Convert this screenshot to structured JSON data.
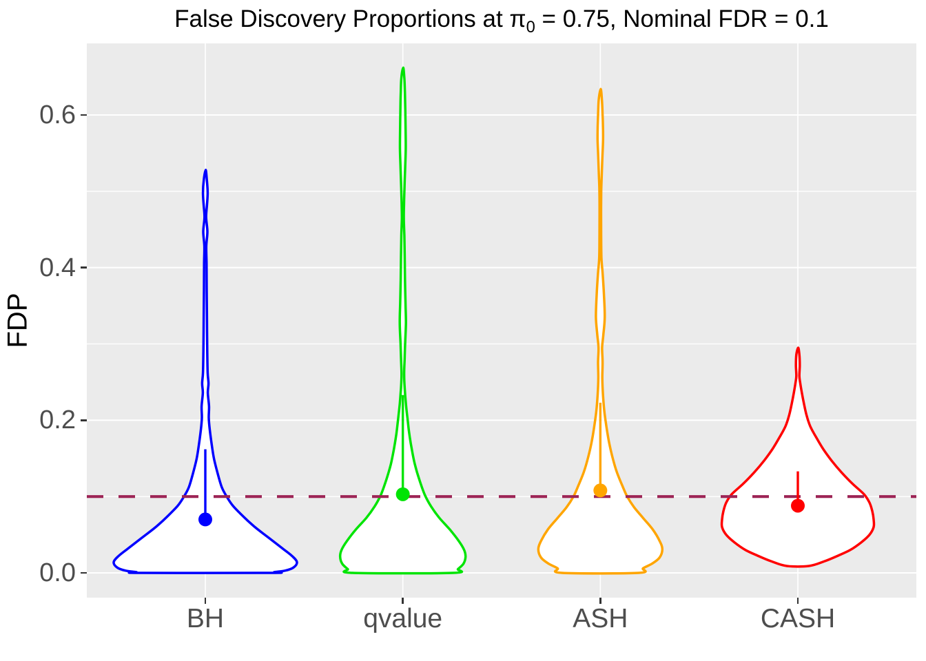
{
  "title_parts": {
    "prefix": "False Discovery Proportions at ",
    "pi": "π",
    "pi_sub": "0",
    "suffix": " = 0.75, Nominal FDR = 0.1"
  },
  "axes": {
    "y": {
      "title": "FDP",
      "major_ticks": [
        {
          "label": "0.0",
          "value": 0.0
        },
        {
          "label": "0.2",
          "value": 0.2
        },
        {
          "label": "0.4",
          "value": 0.4
        },
        {
          "label": "0.6",
          "value": 0.6
        }
      ],
      "minor_ticks": [
        0.1,
        0.3,
        0.5
      ]
    },
    "x": {
      "categories": [
        "BH",
        "qvalue",
        "ASH",
        "CASH"
      ]
    }
  },
  "style": {
    "panel_bg": "#EBEBEB",
    "grid_color": "#FFFFFF",
    "axis_text_color": "#4D4D4D",
    "tick_mark_color": "#333333",
    "violin_fill": "#FFFFFF"
  },
  "chart_data": {
    "type": "violin",
    "title": "False Discovery Proportions at π₀ = 0.75, Nominal FDR = 0.1",
    "ylabel": "FDP",
    "ylim": [
      0,
      0.694
    ],
    "grid": true,
    "categories": [
      "BH",
      "qvalue",
      "ASH",
      "CASH"
    ],
    "hline": {
      "value": 0.1,
      "color": "#9D2455",
      "style": "dashed"
    },
    "series": [
      {
        "name": "BH",
        "color": "#0000FF",
        "mean": 0.07,
        "interval_top": 0.162,
        "max": 0.528,
        "min": 0.0,
        "profile": [
          [
            0.528,
            0.5
          ],
          [
            0.515,
            2.2
          ],
          [
            0.498,
            3.4
          ],
          [
            0.482,
            2.4
          ],
          [
            0.466,
            1.2
          ],
          [
            0.447,
            3.0
          ],
          [
            0.428,
            1.4
          ],
          [
            0.405,
            1.8
          ],
          [
            0.37,
            2.0
          ],
          [
            0.33,
            2.4
          ],
          [
            0.29,
            2.8
          ],
          [
            0.262,
            3.4
          ],
          [
            0.248,
            4.6
          ],
          [
            0.236,
            3.6
          ],
          [
            0.218,
            5.4
          ],
          [
            0.203,
            5.0
          ],
          [
            0.188,
            6.4
          ],
          [
            0.17,
            9.0
          ],
          [
            0.15,
            12.5
          ],
          [
            0.13,
            18
          ],
          [
            0.112,
            24
          ],
          [
            0.1,
            31
          ],
          [
            0.088,
            40
          ],
          [
            0.074,
            55
          ],
          [
            0.06,
            72
          ],
          [
            0.046,
            92
          ],
          [
            0.032,
            112
          ],
          [
            0.022,
            126
          ],
          [
            0.014,
            133
          ],
          [
            0.007,
            128
          ],
          [
            0.003,
            116
          ],
          [
            0.001,
            100
          ],
          [
            0.0,
            96
          ]
        ]
      },
      {
        "name": "qvalue",
        "color": "#00E404",
        "mean": 0.103,
        "interval_top": 0.233,
        "max": 0.662,
        "min": 0.0,
        "profile": [
          [
            0.662,
            0.5
          ],
          [
            0.648,
            2.2
          ],
          [
            0.63,
            3.0
          ],
          [
            0.605,
            3.6
          ],
          [
            0.58,
            4.0
          ],
          [
            0.556,
            4.2
          ],
          [
            0.532,
            3.4
          ],
          [
            0.505,
            2.4
          ],
          [
            0.483,
            1.7
          ],
          [
            0.465,
            1.4
          ],
          [
            0.442,
            2.2
          ],
          [
            0.415,
            2.7
          ],
          [
            0.385,
            3.1
          ],
          [
            0.352,
            3.9
          ],
          [
            0.328,
            4.5
          ],
          [
            0.302,
            3.4
          ],
          [
            0.28,
            2.6
          ],
          [
            0.26,
            1.9
          ],
          [
            0.242,
            2.7
          ],
          [
            0.222,
            4.4
          ],
          [
            0.202,
            6.8
          ],
          [
            0.182,
            9.4
          ],
          [
            0.162,
            13
          ],
          [
            0.142,
            17.5
          ],
          [
            0.122,
            24
          ],
          [
            0.102,
            32
          ],
          [
            0.087,
            41
          ],
          [
            0.072,
            53
          ],
          [
            0.057,
            68
          ],
          [
            0.042,
            81
          ],
          [
            0.03,
            89
          ],
          [
            0.021,
            91
          ],
          [
            0.012,
            88
          ],
          [
            0.005,
            80
          ],
          [
            0.0,
            73
          ]
        ]
      },
      {
        "name": "ASH",
        "color": "#FFA500",
        "mean": 0.108,
        "interval_top": 0.223,
        "max": 0.634,
        "min": 0.0,
        "profile": [
          [
            0.634,
            0.5
          ],
          [
            0.62,
            2.3
          ],
          [
            0.602,
            3.2
          ],
          [
            0.586,
            3.8
          ],
          [
            0.568,
            4.0
          ],
          [
            0.547,
            3.1
          ],
          [
            0.522,
            2.1
          ],
          [
            0.5,
            1.3
          ],
          [
            0.472,
            1.1
          ],
          [
            0.443,
            1.2
          ],
          [
            0.413,
            1.6
          ],
          [
            0.392,
            3.4
          ],
          [
            0.366,
            5.2
          ],
          [
            0.335,
            6.4
          ],
          [
            0.312,
            4.4
          ],
          [
            0.295,
            2.6
          ],
          [
            0.276,
            3.3
          ],
          [
            0.255,
            2.9
          ],
          [
            0.233,
            3.9
          ],
          [
            0.212,
            5.8
          ],
          [
            0.192,
            8.8
          ],
          [
            0.172,
            12.5
          ],
          [
            0.152,
            17.5
          ],
          [
            0.132,
            24
          ],
          [
            0.112,
            33
          ],
          [
            0.1,
            39
          ],
          [
            0.086,
            49
          ],
          [
            0.072,
            62
          ],
          [
            0.057,
            76
          ],
          [
            0.042,
            86
          ],
          [
            0.031,
            90
          ],
          [
            0.02,
            86
          ],
          [
            0.012,
            75
          ],
          [
            0.006,
            62
          ],
          [
            0.0,
            56
          ]
        ]
      },
      {
        "name": "CASH",
        "color": "#FF0000",
        "mean": 0.088,
        "interval_top": 0.133,
        "max": 0.295,
        "min": 0.009,
        "profile": [
          [
            0.295,
            0.5
          ],
          [
            0.286,
            2.2
          ],
          [
            0.272,
            2.8
          ],
          [
            0.258,
            2.2
          ],
          [
            0.249,
            3.4
          ],
          [
            0.236,
            5.8
          ],
          [
            0.222,
            8.8
          ],
          [
            0.207,
            12.5
          ],
          [
            0.192,
            18
          ],
          [
            0.177,
            27
          ],
          [
            0.162,
            37
          ],
          [
            0.147,
            49
          ],
          [
            0.132,
            63
          ],
          [
            0.117,
            79
          ],
          [
            0.103,
            96
          ],
          [
            0.092,
            104
          ],
          [
            0.081,
            108
          ],
          [
            0.07,
            110
          ],
          [
            0.06,
            110
          ],
          [
            0.05,
            104
          ],
          [
            0.04,
            92
          ],
          [
            0.03,
            76
          ],
          [
            0.022,
            57
          ],
          [
            0.015,
            38
          ],
          [
            0.009,
            16
          ]
        ]
      }
    ]
  }
}
